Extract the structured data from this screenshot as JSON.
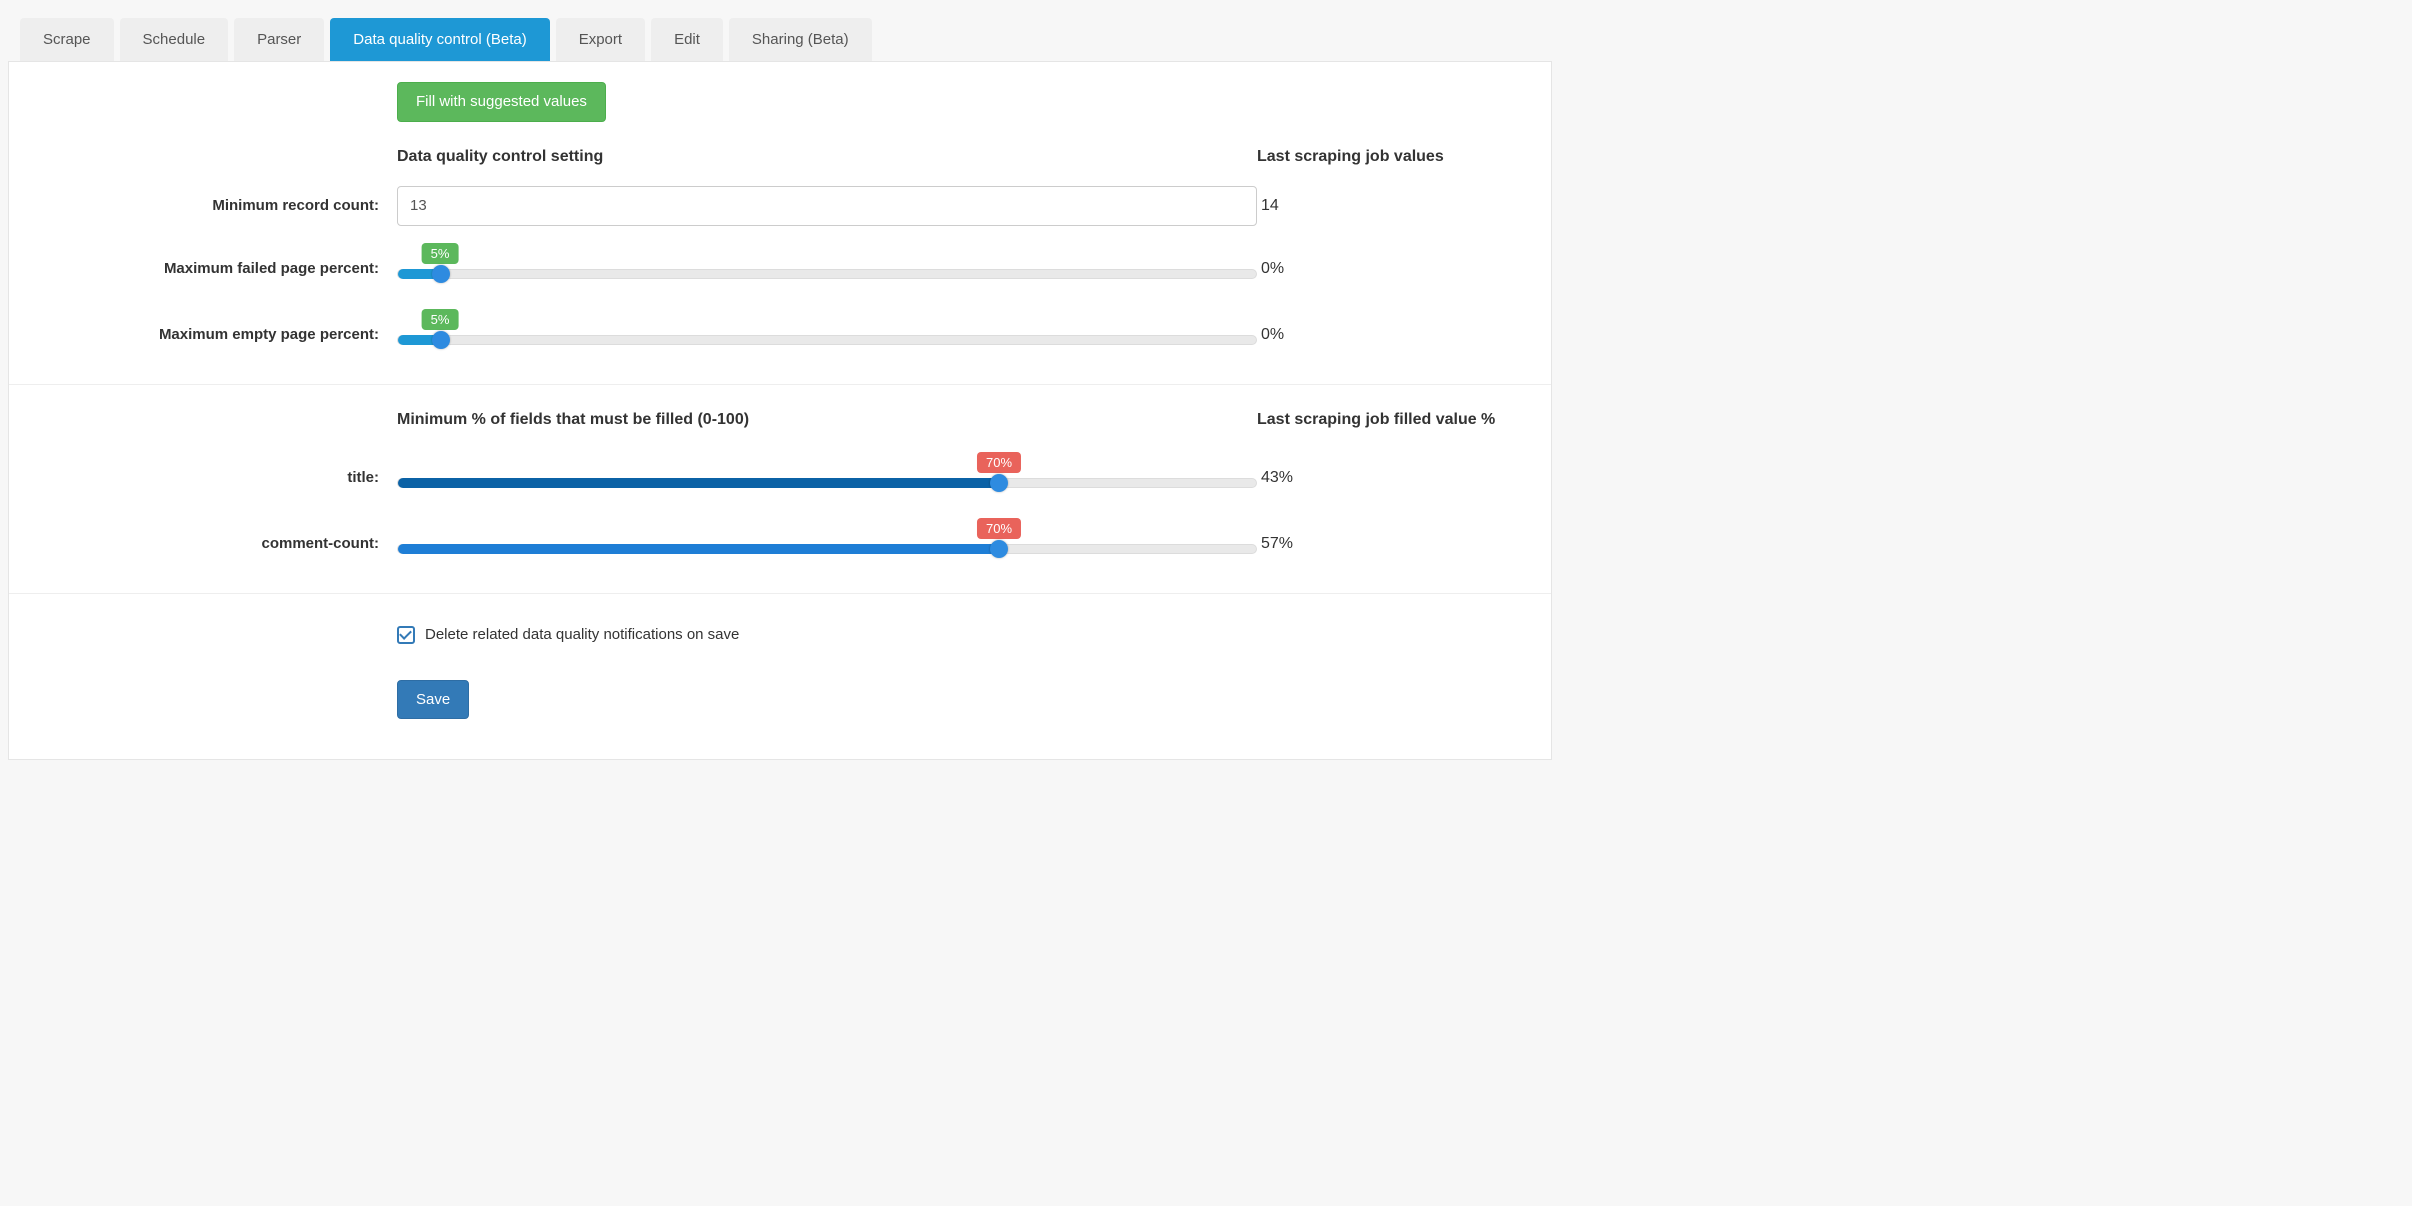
{
  "tabs": [
    {
      "label": "Scrape",
      "active": false
    },
    {
      "label": "Schedule",
      "active": false
    },
    {
      "label": "Parser",
      "active": false
    },
    {
      "label": "Data quality control (Beta)",
      "active": true
    },
    {
      "label": "Export",
      "active": false
    },
    {
      "label": "Edit",
      "active": false
    },
    {
      "label": "Sharing (Beta)",
      "active": false
    }
  ],
  "buttons": {
    "fill_suggested": "Fill with suggested values",
    "save": "Save"
  },
  "headers": {
    "main_setting": "Data quality control setting",
    "last_values": "Last scraping job values",
    "min_percent_fields": "Minimum % of fields that must be filled (0-100)",
    "last_filled_percent": "Last scraping job filled value %"
  },
  "settings": {
    "min_record_count": {
      "label": "Minimum record count:",
      "value": "13",
      "last": "14"
    },
    "max_failed_page": {
      "label": "Maximum failed page percent:",
      "value": 5,
      "tooltip": "5%",
      "last": "0%",
      "fill_color": "#1e98d5",
      "track_fill_dark": "#0b62a6",
      "tooltip_bg": "#5cb85c"
    },
    "max_empty_page": {
      "label": "Maximum empty page percent:",
      "value": 5,
      "tooltip": "5%",
      "last": "0%",
      "fill_color": "#1e98d5",
      "track_fill_dark": "#0b62a6",
      "tooltip_bg": "#5cb85c"
    }
  },
  "fields": [
    {
      "label": "title:",
      "value": 70,
      "tooltip": "70%",
      "last": "43%",
      "fill_color": "#0b62a6",
      "handle_color": "#2e8be0",
      "tooltip_bg": "#e9635b"
    },
    {
      "label": "comment-count:",
      "value": 70,
      "tooltip": "70%",
      "last": "57%",
      "fill_color": "#1e7ed6",
      "handle_color": "#2e8be0",
      "tooltip_bg": "#e9635b"
    }
  ],
  "checkbox": {
    "label": "Delete related data quality notifications on save",
    "checked": true
  },
  "colors": {
    "tab_active_bg": "#1e98d5",
    "tab_inactive_bg": "#eeeeee",
    "btn_green": "#5cb85c",
    "btn_blue": "#337ab7",
    "slider_track": "#e9e9e9",
    "slider_handle": "#2e8be0"
  }
}
